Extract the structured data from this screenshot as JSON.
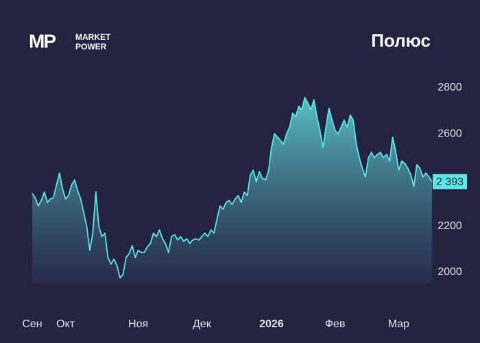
{
  "brand": {
    "mark": "MP",
    "line1": "MARKET",
    "line2": "POWER"
  },
  "chart_data": {
    "type": "area",
    "title": "Полюс",
    "values": [
      2342,
      2324,
      2288,
      2312,
      2348,
      2303,
      2318,
      2324,
      2378,
      2431,
      2363,
      2318,
      2333,
      2378,
      2401,
      2354,
      2318,
      2259,
      2199,
      2095,
      2170,
      2348,
      2199,
      2155,
      2170,
      2065,
      2036,
      2057,
      2027,
      1976,
      1991,
      2065,
      2080,
      2116,
      2065,
      2095,
      2086,
      2086,
      2110,
      2125,
      2170,
      2155,
      2184,
      2146,
      2125,
      2086,
      2155,
      2164,
      2140,
      2155,
      2134,
      2146,
      2125,
      2140,
      2146,
      2140,
      2155,
      2170,
      2155,
      2184,
      2170,
      2229,
      2288,
      2274,
      2303,
      2312,
      2294,
      2318,
      2333,
      2303,
      2348,
      2333,
      2422,
      2443,
      2393,
      2437,
      2407,
      2401,
      2437,
      2541,
      2601,
      2586,
      2571,
      2556,
      2601,
      2630,
      2690,
      2675,
      2720,
      2705,
      2758,
      2735,
      2705,
      2749,
      2675,
      2616,
      2541,
      2630,
      2711,
      2660,
      2616,
      2601,
      2630,
      2660,
      2630,
      2681,
      2660,
      2556,
      2497,
      2452,
      2413,
      2497,
      2520,
      2497,
      2512,
      2520,
      2497,
      2512,
      2482,
      2586,
      2526,
      2443,
      2482,
      2473,
      2452,
      2422,
      2372,
      2467,
      2452,
      2413,
      2431,
      2413,
      2393
    ],
    "color": "#5ce6e6",
    "xlim": [
      0,
      132
    ],
    "xticks": [
      {
        "value": 0,
        "label": "Сен"
      },
      {
        "value": 11,
        "label": "Окт"
      },
      {
        "value": 35,
        "label": "Ноя"
      },
      {
        "value": 56,
        "label": "Дек"
      },
      {
        "value": 79,
        "label": "2026"
      },
      {
        "value": 100,
        "label": "Фев"
      },
      {
        "value": 121,
        "label": "Мар"
      }
    ],
    "ylim": [
      1950,
      2850
    ],
    "yticks": [
      2000,
      2200,
      2600,
      2800
    ],
    "last_value": {
      "value": 2393,
      "label": "2 393"
    }
  }
}
